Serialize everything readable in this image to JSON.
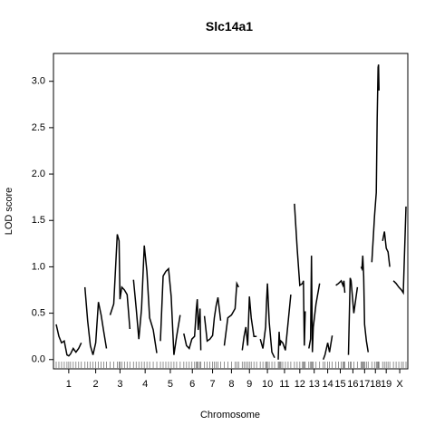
{
  "chart_data": {
    "type": "line",
    "title": "Slc14a1",
    "xlabel": "Chromosome",
    "ylabel": "LOD score",
    "ylim": [
      -0.1,
      3.3
    ],
    "yticks": [
      "0.0",
      "0.5",
      "1.0",
      "1.5",
      "2.0",
      "2.5",
      "3.0"
    ],
    "grid": false,
    "chromosomes": [
      {
        "label": "1",
        "width": 28,
        "pos": [
          0,
          3,
          6,
          9,
          12,
          14,
          16,
          19,
          22,
          25,
          28
        ],
        "lod": [
          0.38,
          0.25,
          0.18,
          0.2,
          0.05,
          0.04,
          0.06,
          0.12,
          0.08,
          0.12,
          0.18
        ]
      },
      {
        "label": "2",
        "width": 24,
        "pos": [
          0,
          3,
          6,
          9,
          12,
          15,
          18,
          21,
          24
        ],
        "lod": [
          0.78,
          0.42,
          0.15,
          0.05,
          0.18,
          0.62,
          0.48,
          0.3,
          0.12
        ]
      },
      {
        "label": "3",
        "width": 22,
        "pos": [
          0,
          4,
          8,
          10,
          11,
          13,
          16,
          19,
          22
        ],
        "lod": [
          0.48,
          0.6,
          1.35,
          1.28,
          0.65,
          0.78,
          0.75,
          0.7,
          0.33
        ]
      },
      {
        "label": "4",
        "width": 26,
        "pos": [
          0,
          3,
          6,
          9,
          12,
          15,
          18,
          22,
          26
        ],
        "lod": [
          0.86,
          0.55,
          0.22,
          0.55,
          1.23,
          0.95,
          0.45,
          0.32,
          0.07
        ]
      },
      {
        "label": "5",
        "width": 22,
        "pos": [
          0,
          3,
          6,
          9,
          12,
          15,
          18,
          22
        ],
        "lod": [
          0.2,
          0.9,
          0.95,
          0.98,
          0.68,
          0.05,
          0.25,
          0.48
        ]
      },
      {
        "label": "6",
        "width": 19,
        "pos": [
          0,
          3,
          6,
          9,
          12,
          14,
          15,
          16,
          18,
          19
        ],
        "lod": [
          0.28,
          0.15,
          0.12,
          0.22,
          0.25,
          0.55,
          0.65,
          0.32,
          0.55,
          0.1
        ]
      },
      {
        "label": "7",
        "width": 18,
        "pos": [
          0,
          3,
          6,
          9,
          11,
          13,
          15,
          18
        ],
        "lod": [
          0.47,
          0.2,
          0.22,
          0.26,
          0.45,
          0.58,
          0.67,
          0.42
        ]
      },
      {
        "label": "8",
        "width": 16,
        "pos": [
          0,
          4,
          8,
          12,
          14,
          16
        ],
        "lod": [
          0.15,
          0.45,
          0.48,
          0.55,
          0.82,
          0.78
        ]
      },
      {
        "label": "9",
        "width": 16,
        "pos": [
          0,
          2,
          4,
          6,
          8,
          10,
          13,
          16
        ],
        "lod": [
          0.1,
          0.25,
          0.35,
          0.15,
          0.68,
          0.45,
          0.25,
          0.25
        ]
      },
      {
        "label": "10",
        "width": 16,
        "pos": [
          0,
          3,
          6,
          7,
          8,
          10,
          13,
          16
        ],
        "lod": [
          0.22,
          0.12,
          0.35,
          0.62,
          0.82,
          0.4,
          0.08,
          0.02
        ]
      },
      {
        "label": "11",
        "width": 14,
        "pos": [
          0,
          1,
          2,
          3,
          5,
          8,
          11,
          14
        ],
        "lod": [
          0.0,
          0.3,
          0.15,
          0.2,
          0.18,
          0.1,
          0.4,
          0.7
        ]
      },
      {
        "label": "12",
        "width": 12,
        "pos": [
          0,
          3,
          6,
          9,
          10,
          11,
          12
        ],
        "lod": [
          1.68,
          1.2,
          0.8,
          0.82,
          0.85,
          0.15,
          0.52
        ]
      },
      {
        "label": "13",
        "width": 12,
        "pos": [
          0,
          2,
          3,
          4,
          5,
          8,
          12
        ],
        "lod": [
          0.12,
          0.22,
          1.12,
          0.08,
          0.35,
          0.6,
          0.82
        ]
      },
      {
        "label": "14",
        "width": 10,
        "pos": [
          0,
          2,
          5,
          7,
          10
        ],
        "lod": [
          0.0,
          0.05,
          0.18,
          0.08,
          0.26
        ]
      },
      {
        "label": "15",
        "width": 10,
        "pos": [
          0,
          3,
          6,
          8,
          9,
          10
        ],
        "lod": [
          0.8,
          0.82,
          0.85,
          0.8,
          0.85,
          0.72
        ]
      },
      {
        "label": "16",
        "width": 10,
        "pos": [
          0,
          2,
          3,
          6,
          10
        ],
        "lod": [
          0.05,
          0.88,
          0.85,
          0.5,
          0.78
        ]
      },
      {
        "label": "17",
        "width": 8,
        "pos": [
          0,
          1,
          2,
          3,
          4,
          6,
          8
        ],
        "lod": [
          1.0,
          0.98,
          1.12,
          0.9,
          0.38,
          0.2,
          0.08
        ]
      },
      {
        "label": "18",
        "width": 8,
        "pos": [
          0,
          3,
          5,
          6,
          7,
          7.5,
          8
        ],
        "lod": [
          1.05,
          1.55,
          1.8,
          2.6,
          3.15,
          3.18,
          2.9
        ]
      },
      {
        "label": "19",
        "width": 8,
        "pos": [
          0,
          2,
          4,
          6,
          8
        ],
        "lod": [
          1.28,
          1.38,
          1.2,
          1.16,
          1.0
        ]
      },
      {
        "label": "X",
        "width": 14,
        "pos": [
          0,
          3,
          6,
          9,
          11,
          14
        ],
        "lod": [
          0.85,
          0.82,
          0.78,
          0.75,
          0.72,
          1.65
        ]
      }
    ]
  }
}
